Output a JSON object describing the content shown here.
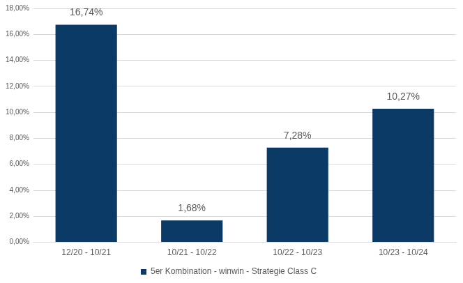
{
  "chart_data": {
    "type": "bar",
    "categories": [
      "12/20 - 10/21",
      "10/21 - 10/22",
      "10/22 - 10/23",
      "10/23 - 10/24"
    ],
    "series": [
      {
        "name": "5er Kombination - winwin - Strategie Class C",
        "color": "#0b3a66",
        "values": [
          16.74,
          1.68,
          7.28,
          10.27
        ],
        "value_labels": [
          "16,74%",
          "1,68%",
          "7,28%",
          "10,27%"
        ]
      }
    ],
    "ylim": [
      0,
      18
    ],
    "yticks": [
      {
        "value": 0,
        "label": "0,00%"
      },
      {
        "value": 2,
        "label": "2,00%"
      },
      {
        "value": 4,
        "label": "4,00%"
      },
      {
        "value": 6,
        "label": "6,00%"
      },
      {
        "value": 8,
        "label": "8,00%"
      },
      {
        "value": 10,
        "label": "10,00%"
      },
      {
        "value": 12,
        "label": "12,00%"
      },
      {
        "value": 14,
        "label": "14,00%"
      },
      {
        "value": 16,
        "label": "16,00%"
      },
      {
        "value": 18,
        "label": "18,00%"
      }
    ],
    "grid": true,
    "legend": "bottom",
    "data_labels": true
  }
}
